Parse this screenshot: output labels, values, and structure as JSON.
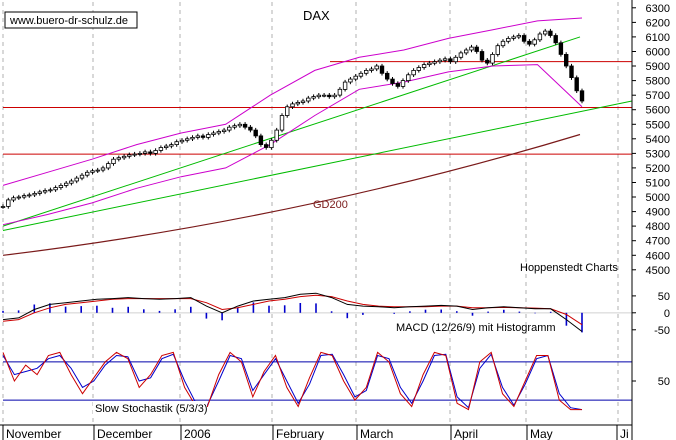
{
  "chart_data": {
    "type": "line",
    "title": "DAX",
    "watermark": "www.buero-dr-schulz.de",
    "source_label": "Hoppenstedt Charts",
    "x_labels": [
      "November",
      "December",
      "2006",
      "February",
      "March",
      "April",
      "May",
      "Ji"
    ],
    "price_panel": {
      "y_ticks": [
        4500,
        4600,
        4700,
        4800,
        4900,
        5000,
        5100,
        5200,
        5300,
        5400,
        5500,
        5600,
        5700,
        5800,
        5900,
        6000,
        6100,
        6200,
        6300
      ],
      "ylim": [
        4430,
        6340
      ],
      "series": [
        {
          "kind": "candles",
          "color": "#000000",
          "values": [
            4935,
            4980,
            4995,
            5000,
            5010,
            5015,
            5025,
            5035,
            5045,
            5050,
            5065,
            5080,
            5095,
            5110,
            5130,
            5150,
            5170,
            5180,
            5185,
            5200,
            5230,
            5260,
            5270,
            5280,
            5290,
            5295,
            5300,
            5310,
            5300,
            5320,
            5340,
            5350,
            5360,
            5380,
            5390,
            5400,
            5410,
            5420,
            5410,
            5430,
            5440,
            5450,
            5460,
            5480,
            5490,
            5500,
            5480,
            5460,
            5420,
            5360,
            5340,
            5390,
            5460,
            5560,
            5620,
            5640,
            5650,
            5660,
            5680,
            5690,
            5700,
            5700,
            5690,
            5700,
            5740,
            5790,
            5810,
            5830,
            5850,
            5870,
            5880,
            5900,
            5850,
            5810,
            5780,
            5760,
            5800,
            5840,
            5870,
            5890,
            5910,
            5920,
            5930,
            5940,
            5950,
            5930,
            5960,
            5990,
            6010,
            6030,
            6000,
            5940,
            5920,
            5980,
            6040,
            6070,
            6090,
            6100,
            6110,
            6070,
            6050,
            6080,
            6120,
            6140,
            6110,
            6060,
            5980,
            5900,
            5820,
            5730,
            5660
          ]
        },
        {
          "name": "GD200",
          "color": "#7a1a1a",
          "values": [
            4600,
            4985,
            5430
          ]
        },
        {
          "kind": "bollinger_upper",
          "color": "#cc00cc",
          "values": [
            5080,
            5170,
            5260,
            5360,
            5440,
            5500,
            5700,
            5870,
            5960,
            6010,
            6090,
            6150,
            6210,
            6230
          ]
        },
        {
          "kind": "bollinger_lower",
          "color": "#cc00cc",
          "values": [
            4810,
            4880,
            4960,
            5060,
            5140,
            5200,
            5360,
            5560,
            5740,
            5790,
            5860,
            5900,
            5910,
            5620
          ]
        }
      ],
      "horizontal_lines": [
        {
          "value": 5930,
          "color": "#cc0000"
        },
        {
          "value": 5615,
          "color": "#cc0000"
        },
        {
          "value": 5295,
          "color": "#cc0000"
        }
      ],
      "trend_lines": [
        {
          "color": "#00bb00",
          "from_value": 4800,
          "to_value": 6100
        },
        {
          "color": "#00bb00",
          "from_value": 4770,
          "to_value": 5660
        }
      ]
    },
    "macd_panel": {
      "label": "MACD (12/26/9) mit Histogramm",
      "y_ticks": [
        50,
        0,
        -50
      ],
      "ylim": [
        -80,
        85
      ],
      "macd": [
        -20,
        -15,
        10,
        25,
        30,
        35,
        40,
        42,
        45,
        42,
        40,
        42,
        45,
        20,
        0,
        20,
        35,
        40,
        45,
        55,
        58,
        45,
        25,
        20,
        18,
        15,
        18,
        20,
        22,
        20,
        10,
        15,
        18,
        15,
        12,
        12,
        -20,
        -55
      ],
      "signal": [
        -25,
        -20,
        0,
        15,
        25,
        30,
        35,
        40,
        42,
        42,
        42,
        42,
        42,
        30,
        10,
        15,
        25,
        35,
        40,
        48,
        52,
        48,
        35,
        25,
        20,
        18,
        18,
        18,
        20,
        20,
        15,
        15,
        16,
        15,
        14,
        12,
        -5,
        -35
      ]
    },
    "stochastic_panel": {
      "label": "Slow Stochastik (5/3/3)",
      "y_ticks": [
        50
      ],
      "ylim": [
        -5,
        105
      ],
      "levels": [
        80,
        20
      ],
      "k": [
        95,
        50,
        75,
        60,
        90,
        95,
        60,
        30,
        55,
        80,
        95,
        85,
        40,
        60,
        90,
        95,
        40,
        10,
        10,
        60,
        95,
        80,
        25,
        65,
        90,
        40,
        10,
        55,
        95,
        90,
        50,
        20,
        40,
        95,
        80,
        30,
        10,
        60,
        95,
        90,
        15,
        5,
        80,
        95,
        30,
        10,
        50,
        90,
        90,
        20,
        5,
        5
      ],
      "d": [
        90,
        60,
        65,
        70,
        85,
        90,
        70,
        40,
        50,
        75,
        90,
        88,
        50,
        55,
        85,
        92,
        50,
        15,
        12,
        50,
        90,
        85,
        35,
        60,
        85,
        50,
        15,
        45,
        90,
        92,
        60,
        25,
        35,
        90,
        85,
        40,
        15,
        50,
        90,
        92,
        25,
        8,
        70,
        92,
        40,
        12,
        45,
        85,
        90,
        30,
        8,
        5
      ]
    }
  }
}
